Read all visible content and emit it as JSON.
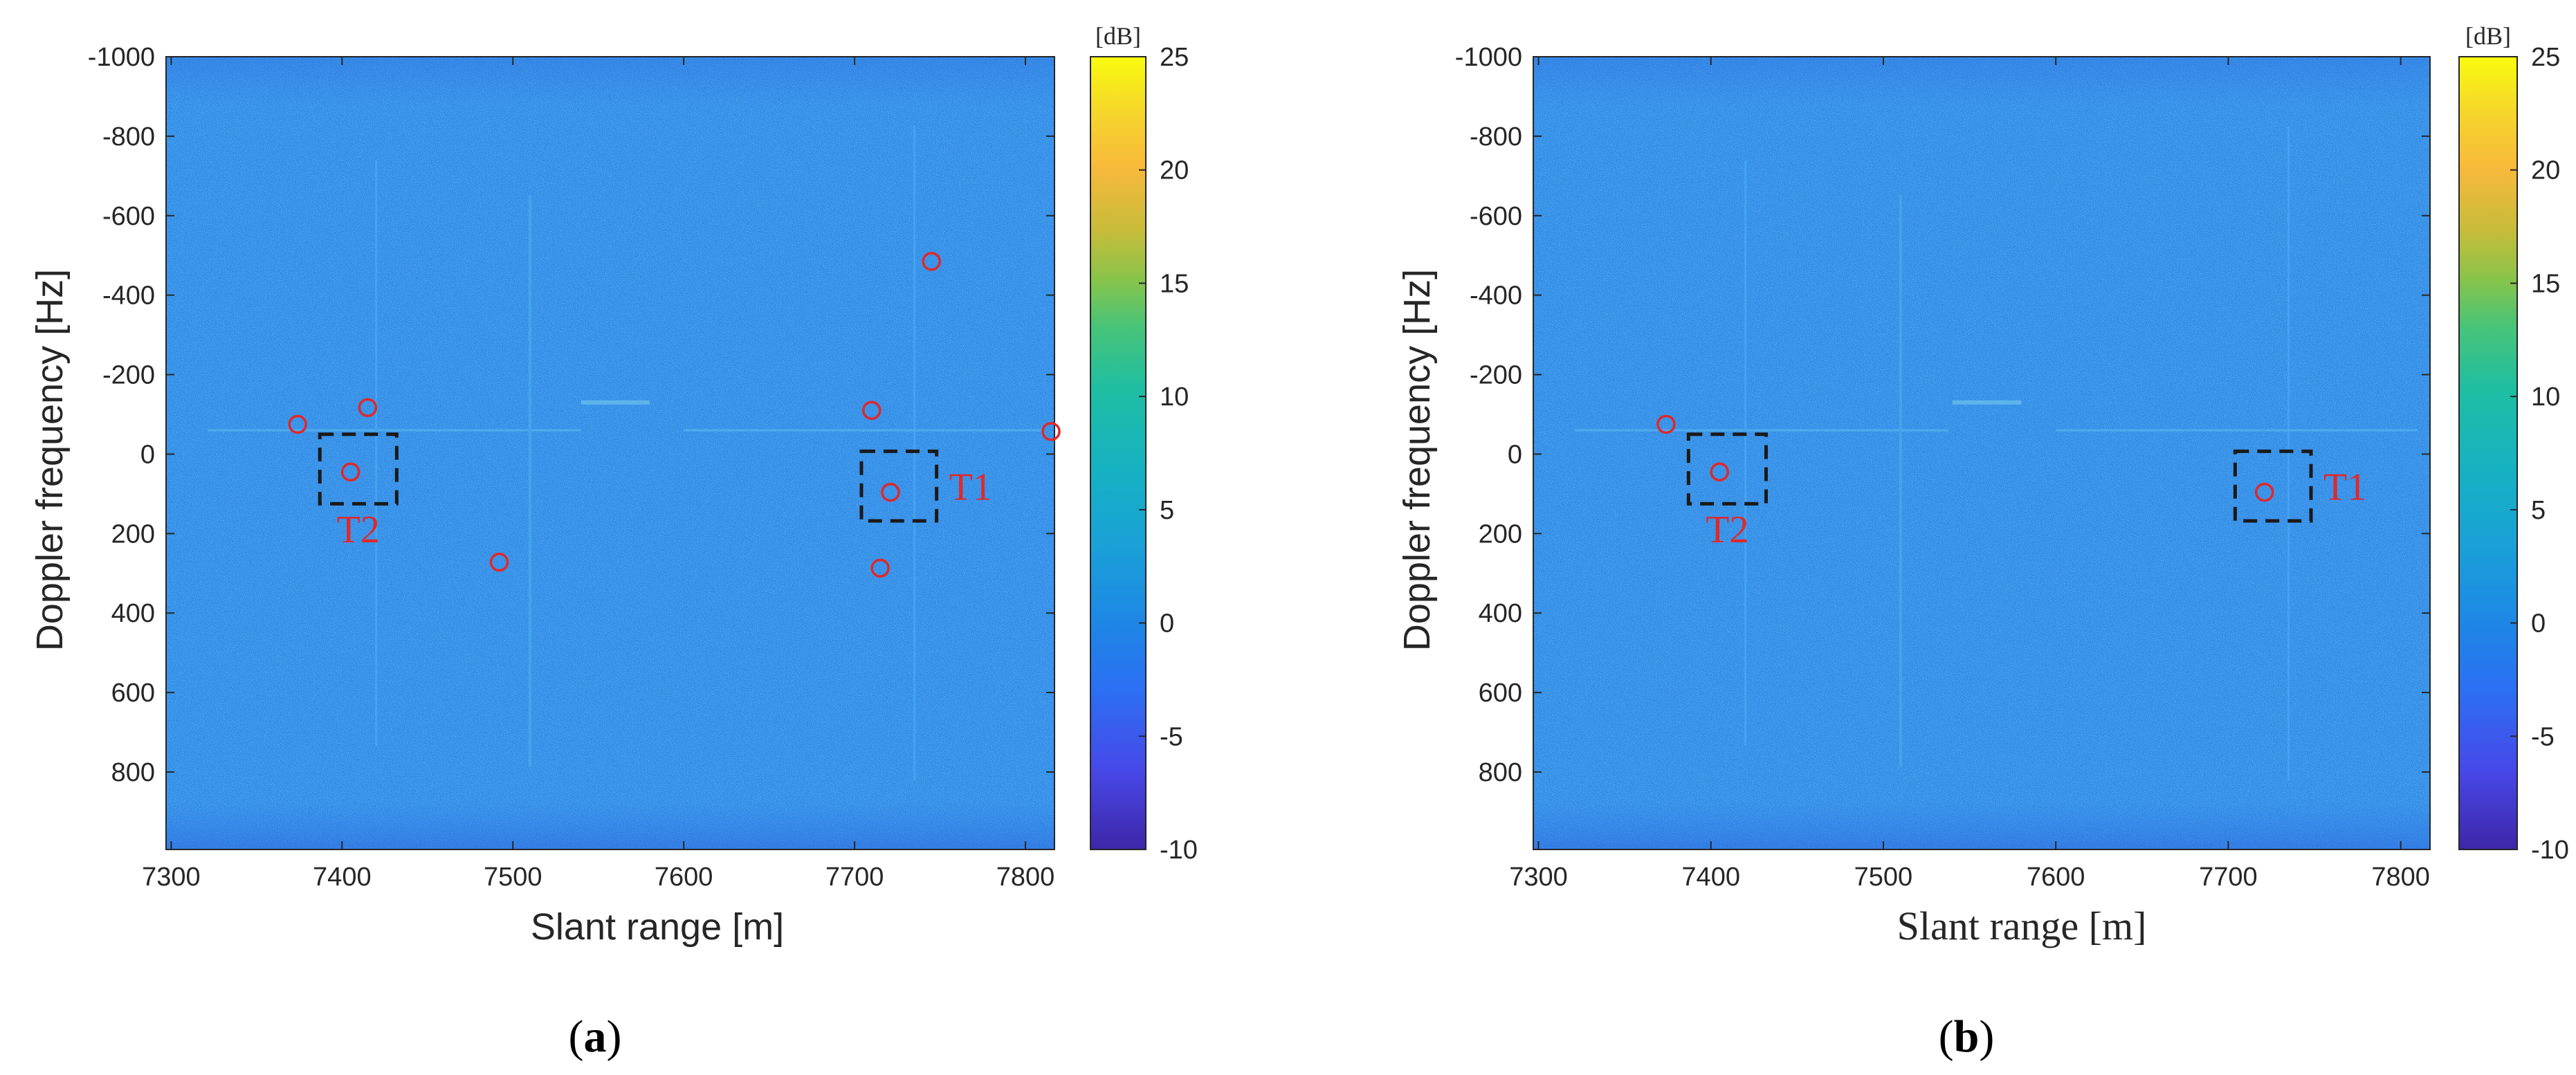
{
  "chart_data": [
    {
      "type": "heatmap",
      "panel_label": "(a)",
      "panel_letter": "a",
      "xlabel": "Slant range [m]",
      "ylabel": "Doppler frequency [Hz]",
      "xlim": [
        7297,
        7817
      ],
      "ylim": [
        -1000,
        995
      ],
      "y_reversed": true,
      "xticks": [
        7300,
        7400,
        7500,
        7600,
        7700,
        7800
      ],
      "yticks": [
        -1000,
        -800,
        -600,
        -400,
        -200,
        0,
        200,
        400,
        600,
        800
      ],
      "colorbar": {
        "unit": "[dB]",
        "min": -10,
        "max": 25,
        "ticks": [
          -10,
          -5,
          0,
          5,
          10,
          15,
          20,
          25
        ]
      },
      "detections": [
        {
          "x": 7374,
          "y": -75
        },
        {
          "x": 7415,
          "y": -117
        },
        {
          "x": 7405,
          "y": 45
        },
        {
          "x": 7492,
          "y": 272
        },
        {
          "x": 7710,
          "y": -110
        },
        {
          "x": 7745,
          "y": -485
        },
        {
          "x": 7721,
          "y": 96
        },
        {
          "x": 7715,
          "y": 287
        },
        {
          "x": 7815,
          "y": -57
        }
      ],
      "targets": [
        {
          "label": "T2",
          "x": [
            7387,
            7432
          ],
          "y": [
            -50,
            125
          ],
          "label_side": "below"
        },
        {
          "label": "T1",
          "x": [
            7704,
            7748
          ],
          "y": [
            -7,
            168
          ],
          "label_side": "right"
        }
      ]
    },
    {
      "type": "heatmap",
      "panel_label": "(b)",
      "panel_letter": "b",
      "xlabel": "Slant range [m]",
      "ylabel": "Doppler frequency [Hz]",
      "xlim": [
        7297,
        7817
      ],
      "ylim": [
        -1000,
        995
      ],
      "y_reversed": true,
      "xticks": [
        7300,
        7400,
        7500,
        7600,
        7700,
        7800
      ],
      "yticks": [
        -1000,
        -800,
        -600,
        -400,
        -200,
        0,
        200,
        400,
        600,
        800
      ],
      "colorbar": {
        "unit": "[dB]",
        "min": -10,
        "max": 25,
        "ticks": [
          -10,
          -5,
          0,
          5,
          10,
          15,
          20,
          25
        ]
      },
      "detections": [
        {
          "x": 7374,
          "y": -75
        },
        {
          "x": 7405,
          "y": 45
        },
        {
          "x": 7721,
          "y": 96
        }
      ],
      "targets": [
        {
          "label": "T2",
          "x": [
            7387,
            7432
          ],
          "y": [
            -50,
            125
          ],
          "label_side": "below"
        },
        {
          "label": "T1",
          "x": [
            7704,
            7748
          ],
          "y": [
            -7,
            168
          ],
          "label_side": "right"
        }
      ]
    }
  ],
  "colors": {
    "background_blue": "#2e8be6",
    "detection_circle": "#e0282a",
    "target_box": "#1a1a1a",
    "target_label": "#e0282a",
    "axis": "#262626",
    "tick_text": "#262626"
  }
}
